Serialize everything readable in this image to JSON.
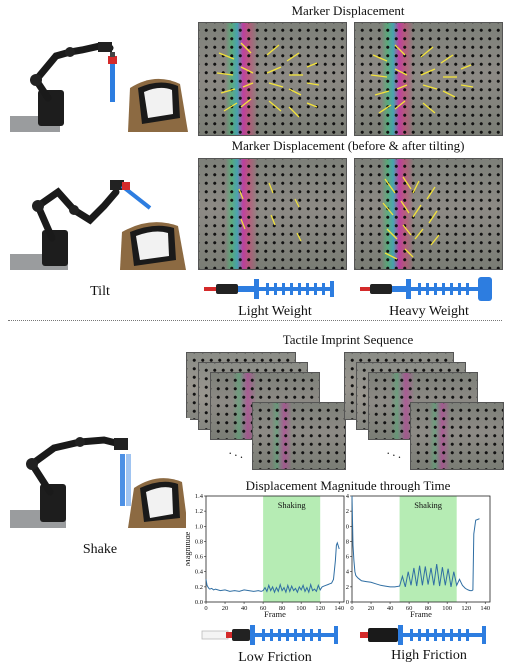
{
  "top": {
    "title_marker_displacement": "Marker Displacement",
    "title_before_after": "Marker Displacement (before & after tilting)",
    "tilt_label": "Tilt",
    "light_weight_label": "Light Weight",
    "heavy_weight_label": "Heavy Weight"
  },
  "bottom": {
    "title_tactile_sequence": "Tactile Imprint Sequence",
    "title_displacement_magnitude": "Displacement Magnitude through Time",
    "shake_label": "Shake",
    "low_friction_label": "Low Friction",
    "high_friction_label": "High Friction",
    "ellipsis_left": ". . .",
    "ellipsis_right": ". . ."
  },
  "colors": {
    "shaking_band": "#b6ecb4",
    "line": "#2f6ea3",
    "displacement_arrow": "#f3e33a",
    "blue_part": "#2d7de0",
    "red_part": "#d42a2a"
  },
  "chart_data": [
    {
      "type": "line",
      "title": "",
      "xlabel": "Frame",
      "ylabel": "Magnitude",
      "xlim": [
        0,
        145
      ],
      "ylim": [
        0.0,
        1.4
      ],
      "xticks": [
        0,
        20,
        40,
        60,
        80,
        100,
        120,
        140
      ],
      "yticks": [
        0.0,
        0.2,
        0.4,
        0.6,
        0.8,
        1.0,
        1.2,
        1.4
      ],
      "band": {
        "label": "Shaking",
        "x0": 60,
        "x1": 120
      },
      "series": [
        {
          "x": [
            0,
            1,
            2,
            3,
            4,
            6,
            8,
            10,
            15,
            20,
            25,
            30,
            35,
            40,
            45,
            50,
            55,
            58,
            60,
            62,
            64,
            66,
            68,
            70,
            72,
            74,
            76,
            78,
            80,
            82,
            84,
            86,
            88,
            90,
            92,
            94,
            96,
            98,
            100,
            102,
            104,
            106,
            108,
            110,
            112,
            114,
            116,
            118,
            120,
            122,
            124,
            126,
            128,
            130,
            132,
            134,
            136,
            137,
            138,
            139,
            140
          ],
          "y": [
            0.3,
            0.22,
            0.2,
            0.18,
            0.17,
            0.18,
            0.16,
            0.17,
            0.15,
            0.16,
            0.14,
            0.15,
            0.14,
            0.16,
            0.15,
            0.14,
            0.15,
            0.14,
            0.15,
            0.19,
            0.14,
            0.22,
            0.15,
            0.2,
            0.13,
            0.19,
            0.14,
            0.23,
            0.15,
            0.19,
            0.13,
            0.22,
            0.14,
            0.21,
            0.15,
            0.18,
            0.13,
            0.2,
            0.16,
            0.22,
            0.14,
            0.19,
            0.13,
            0.23,
            0.15,
            0.17,
            0.14,
            0.22,
            0.16,
            0.2,
            0.21,
            0.22,
            0.23,
            0.24,
            0.25,
            0.3,
            0.55,
            0.75,
            0.78,
            0.74,
            0.7
          ]
        }
      ]
    },
    {
      "type": "line",
      "title": "",
      "xlabel": "Frame",
      "ylabel": "",
      "xlim": [
        0,
        145
      ],
      "ylim": [
        0.0,
        1.4
      ],
      "xticks": [
        0,
        20,
        40,
        60,
        80,
        100,
        120,
        140
      ],
      "yticks": [
        0.0,
        0.2,
        0.4,
        0.6,
        0.8,
        1.0,
        1.2,
        1.4
      ],
      "band": {
        "label": "Shaking",
        "x0": 50,
        "x1": 110
      },
      "series": [
        {
          "x": [
            0,
            1,
            2,
            3,
            4,
            6,
            8,
            10,
            15,
            20,
            25,
            30,
            35,
            40,
            45,
            50,
            53,
            56,
            59,
            62,
            65,
            68,
            71,
            74,
            77,
            80,
            83,
            86,
            89,
            92,
            95,
            98,
            101,
            104,
            107,
            110,
            113,
            116,
            119,
            122,
            124,
            126,
            127,
            128,
            130,
            132,
            134
          ],
          "y": [
            1.4,
            0.75,
            0.55,
            0.4,
            0.35,
            0.32,
            0.3,
            0.28,
            0.27,
            0.26,
            0.24,
            0.22,
            0.21,
            0.2,
            0.2,
            0.21,
            0.34,
            0.2,
            0.4,
            0.22,
            0.45,
            0.21,
            0.48,
            0.22,
            0.47,
            0.23,
            0.45,
            0.22,
            0.5,
            0.21,
            0.46,
            0.22,
            0.44,
            0.2,
            0.4,
            0.22,
            0.3,
            0.22,
            0.18,
            0.16,
            0.15,
            0.15,
            0.16,
            0.9,
            1.08,
            1.09,
            1.1
          ]
        }
      ]
    }
  ]
}
